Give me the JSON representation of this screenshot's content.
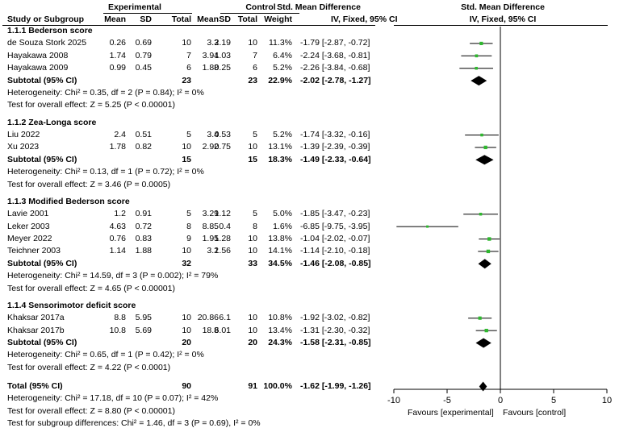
{
  "header": {
    "group1": "Experimental",
    "group2": "Control",
    "smd": "Std. Mean Difference",
    "smd_plot": "Std. Mean Difference",
    "col_study": "Study or Subgroup",
    "col_mean": "Mean",
    "col_sd": "SD",
    "col_total": "Total",
    "col_weight": "Weight",
    "col_method": "IV, Fixed, 95% CI",
    "col_method_plot": "IV, Fixed, 95% CI"
  },
  "chart_data": {
    "type": "forest",
    "xlim": [
      -10,
      10
    ],
    "xticks": [
      -10,
      -5,
      0,
      5,
      10
    ],
    "xtick_labels": [
      "-10",
      "-5",
      "0",
      "5",
      "10"
    ],
    "favours_left": "Favours [experimental]",
    "favours_right": "Favours [control]",
    "subgroups": [
      {
        "title": "1.1.1 Bederson score",
        "studies": [
          {
            "name": "de Souza Stork 2025",
            "m1": "0.26",
            "sd1": "0.69",
            "n1": "10",
            "m2": "3.3",
            "sd2": "2.19",
            "n2": "10",
            "weight": "11.3%",
            "ci": "-1.79 [-2.87, -0.72]",
            "est": -1.79,
            "lo": -2.87,
            "hi": -0.72
          },
          {
            "name": "Hayakawa 2008",
            "m1": "1.74",
            "sd1": "0.79",
            "n1": "7",
            "m2": "3.94",
            "sd2": "1.03",
            "n2": "7",
            "weight": "6.4%",
            "ci": "-2.24 [-3.68, -0.81]",
            "est": -2.24,
            "lo": -3.68,
            "hi": -0.81
          },
          {
            "name": "Hayakawa 2009",
            "m1": "0.99",
            "sd1": "0.45",
            "n1": "6",
            "m2": "1.88",
            "sd2": "0.25",
            "n2": "6",
            "weight": "5.2%",
            "ci": "-2.26 [-3.84, -0.68]",
            "est": -2.26,
            "lo": -3.84,
            "hi": -0.68
          }
        ],
        "subtotal": {
          "label": "Subtotal (95% CI)",
          "n1": "23",
          "n2": "23",
          "weight": "22.9%",
          "ci": "-2.02 [-2.78, -1.27]",
          "est": -2.02,
          "lo": -2.78,
          "hi": -1.27
        },
        "heterogeneity": "Heterogeneity: Chi² = 0.35, df = 2 (P = 0.84); I² = 0%",
        "overall": "Test for overall effect: Z = 5.25 (P < 0.00001)"
      },
      {
        "title": "1.1.2 Zea-Longa score",
        "studies": [
          {
            "name": "Liu 2022",
            "m1": "2.4",
            "sd1": "0.51",
            "n1": "5",
            "m2": "3.4",
            "sd2": "0.53",
            "n2": "5",
            "weight": "5.2%",
            "ci": "-1.74 [-3.32, -0.16]",
            "est": -1.74,
            "lo": -3.32,
            "hi": -0.16
          },
          {
            "name": "Xu 2023",
            "m1": "1.78",
            "sd1": "0.82",
            "n1": "10",
            "m2": "2.92",
            "sd2": "0.75",
            "n2": "10",
            "weight": "13.1%",
            "ci": "-1.39 [-2.39, -0.39]",
            "est": -1.39,
            "lo": -2.39,
            "hi": -0.39
          }
        ],
        "subtotal": {
          "label": "Subtotal (95% CI)",
          "n1": "15",
          "n2": "15",
          "weight": "18.3%",
          "ci": "-1.49 [-2.33, -0.64]",
          "est": -1.49,
          "lo": -2.33,
          "hi": -0.64
        },
        "heterogeneity": "Heterogeneity: Chi² = 0.13, df = 1 (P = 0.72); I² = 0%",
        "overall": "Test for overall effect: Z = 3.46 (P = 0.0005)"
      },
      {
        "title": "1.1.3 Modified Bederson score",
        "studies": [
          {
            "name": "Lavie 2001",
            "m1": "1.2",
            "sd1": "0.91",
            "n1": "5",
            "m2": "3.29",
            "sd2": "1.12",
            "n2": "5",
            "weight": "5.0%",
            "ci": "-1.85 [-3.47, -0.23]",
            "est": -1.85,
            "lo": -3.47,
            "hi": -0.23
          },
          {
            "name": "Leker 2003",
            "m1": "4.63",
            "sd1": "0.72",
            "n1": "8",
            "m2": "8.85",
            "sd2": "0.4",
            "n2": "8",
            "weight": "1.6%",
            "ci": "-6.85 [-9.75, -3.95]",
            "est": -6.85,
            "lo": -9.75,
            "hi": -3.95
          },
          {
            "name": "Meyer 2022",
            "m1": "0.76",
            "sd1": "0.83",
            "n1": "9",
            "m2": "1.95",
            "sd2": "1.28",
            "n2": "10",
            "weight": "13.8%",
            "ci": "-1.04 [-2.02, -0.07]",
            "est": -1.04,
            "lo": -2.02,
            "hi": -0.07
          },
          {
            "name": "Teichner 2003",
            "m1": "1.14",
            "sd1": "1.88",
            "n1": "10",
            "m2": "3.2",
            "sd2": "1.56",
            "n2": "10",
            "weight": "14.1%",
            "ci": "-1.14 [-2.10, -0.18]",
            "est": -1.14,
            "lo": -2.1,
            "hi": -0.18
          }
        ],
        "subtotal": {
          "label": "Subtotal (95% CI)",
          "n1": "32",
          "n2": "33",
          "weight": "34.5%",
          "ci": "-1.46 [-2.08, -0.85]",
          "est": -1.46,
          "lo": -2.08,
          "hi": -0.85
        },
        "heterogeneity": "Heterogeneity: Chi² = 14.59, df = 3 (P = 0.002); I² = 79%",
        "overall": "Test for overall effect: Z = 4.65 (P < 0.00001)"
      },
      {
        "title": "1.1.4 Sensorimotor deficit score",
        "studies": [
          {
            "name": "Khaksar 2017a",
            "m1": "8.8",
            "sd1": "5.95",
            "n1": "10",
            "m2": "20.86",
            "sd2": "6.1",
            "n2": "10",
            "weight": "10.8%",
            "ci": "-1.92 [-3.02, -0.82]",
            "est": -1.92,
            "lo": -3.02,
            "hi": -0.82
          },
          {
            "name": "Khaksar 2017b",
            "m1": "10.8",
            "sd1": "5.69",
            "n1": "10",
            "m2": "18.8",
            "sd2": "6.01",
            "n2": "10",
            "weight": "13.4%",
            "ci": "-1.31 [-2.30, -0.32]",
            "est": -1.31,
            "lo": -2.3,
            "hi": -0.32
          }
        ],
        "subtotal": {
          "label": "Subtotal (95% CI)",
          "n1": "20",
          "n2": "20",
          "weight": "24.3%",
          "ci": "-1.58 [-2.31, -0.85]",
          "est": -1.58,
          "lo": -2.31,
          "hi": -0.85
        },
        "heterogeneity": "Heterogeneity: Chi² = 0.65, df = 1 (P = 0.42); I² = 0%",
        "overall": "Test for overall effect: Z = 4.22 (P < 0.0001)"
      }
    ],
    "total": {
      "label": "Total (95% CI)",
      "n1": "90",
      "n2": "91",
      "weight": "100.0%",
      "ci": "-1.62 [-1.99, -1.26]",
      "est": -1.62,
      "lo": -1.99,
      "hi": -1.26
    },
    "total_heterogeneity": "Heterogeneity: Chi² = 17.18, df = 10 (P = 0.07); I² = 42%",
    "total_overall": "Test for overall effect: Z = 8.80 (P < 0.00001)",
    "subgroup_differences": "Test for subgroup differences: Chi² = 1.46, df = 3 (P = 0.69), I² = 0%",
    "colors": {
      "point": "#2eb82e",
      "line": "#000000",
      "diamond": "#000000"
    }
  }
}
